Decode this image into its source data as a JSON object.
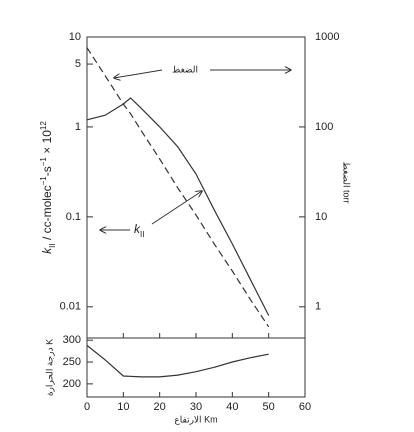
{
  "chart_data": [
    {
      "type": "line",
      "y_label": [
        {
          "t": "k"
        },
        {
          "t": "II",
          "sub": true
        },
        {
          "t": " / cc-molec"
        },
        {
          "t": "−1",
          "sup": true
        },
        {
          "t": "-s"
        },
        {
          "t": "−1",
          "sup": true
        },
        {
          "t": " × 10"
        },
        {
          "t": "12",
          "sup": true
        }
      ],
      "y2_label": "الضغط torr",
      "log_y": true,
      "x": [
        0,
        5,
        10,
        12,
        15,
        20,
        25,
        30,
        35,
        40,
        45,
        50
      ],
      "xlim": [
        0,
        60
      ],
      "xticks": [
        0,
        10,
        20,
        30,
        40,
        50,
        60
      ],
      "ylim": [
        0.0045,
        10
      ],
      "yticks": [
        0.01,
        0.1,
        1,
        5,
        10
      ],
      "y2lim": [
        0.45,
        1000
      ],
      "y2ticks": [
        1,
        10,
        100,
        1000
      ],
      "series": [
        {
          "color": "#333333",
          "values": [
            1.2,
            1.35,
            1.8,
            2.1,
            1.6,
            1.0,
            0.6,
            0.3,
            0.12,
            0.05,
            0.02,
            0.008
          ]
        },
        {
          "color": "#333333",
          "dash": true,
          "axis": "y2",
          "values": [
            760,
            370,
            180,
            140,
            90,
            44,
            21,
            10.5,
            5,
            2.5,
            1.2,
            0.6
          ]
        }
      ],
      "annotations": [
        {
          "text": "الضغط"
        },
        {
          "text": "k",
          "sub": "II"
        }
      ]
    },
    {
      "type": "line",
      "y_label": "درجة الحرارة K",
      "x_label": "الارتفاع Km",
      "x": [
        0,
        5,
        10,
        15,
        20,
        25,
        30,
        35,
        40,
        45,
        50
      ],
      "xlim": [
        0,
        60
      ],
      "xticks": [
        0,
        10,
        20,
        30,
        40,
        50,
        60
      ],
      "ylim": [
        170,
        305
      ],
      "yticks": [
        200,
        250,
        300
      ],
      "series": [
        {
          "color": "#333333",
          "values": [
            288,
            255,
            218,
            216,
            216,
            220,
            228,
            238,
            250,
            260,
            268
          ]
        }
      ]
    }
  ]
}
